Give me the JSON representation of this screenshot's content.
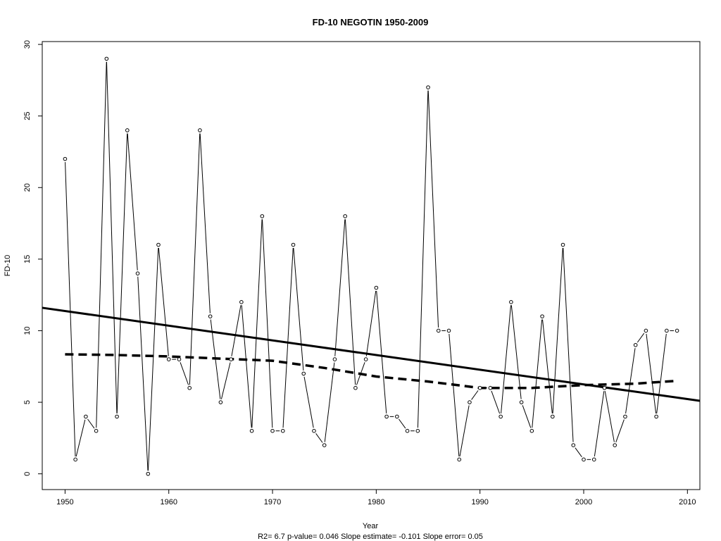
{
  "chart_data": {
    "type": "line",
    "title": "FD-10   NEGOTIN 1950-2009",
    "xlabel": "Year",
    "ylabel": "FD-10",
    "subtitle": "R2= 6.7  p-value= 0.046  Slope estimate= -0.101  Slope error= 0.05",
    "xlim": [
      1947.8,
      2011.2
    ],
    "ylim": [
      -1.1,
      30.2
    ],
    "xticks": [
      1950,
      1960,
      1970,
      1980,
      1990,
      2000,
      2010
    ],
    "yticks": [
      0,
      5,
      10,
      15,
      20,
      25,
      30
    ],
    "grid": false,
    "series": [
      {
        "style": "line-with-points",
        "x": [
          1950,
          1951,
          1952,
          1953,
          1954,
          1955,
          1956,
          1957,
          1958,
          1959,
          1960,
          1961,
          1962,
          1963,
          1964,
          1965,
          1966,
          1967,
          1968,
          1969,
          1970,
          1971,
          1972,
          1973,
          1974,
          1975,
          1976,
          1977,
          1978,
          1979,
          1980,
          1981,
          1982,
          1983,
          1984,
          1985,
          1986,
          1987,
          1988,
          1989,
          1990,
          1991,
          1992,
          1993,
          1994,
          1995,
          1996,
          1997,
          1998,
          1999,
          2000,
          2001,
          2002,
          2003,
          2004,
          2005,
          2006,
          2007,
          2008,
          2009
        ],
        "values": [
          22,
          1,
          4,
          3,
          29,
          4,
          24,
          14,
          0,
          16,
          8,
          8,
          6,
          24,
          11,
          5,
          8,
          12,
          3,
          18,
          3,
          3,
          16,
          7,
          3,
          2,
          8,
          18,
          6,
          8,
          13,
          4,
          4,
          3,
          3,
          27,
          10,
          10,
          1,
          5,
          6,
          6,
          4,
          12,
          5,
          3,
          11,
          4,
          16,
          2,
          1,
          1,
          6,
          2,
          4,
          9,
          10,
          4,
          10,
          10
        ]
      },
      {
        "style": "regression-line",
        "x": [
          1947.8,
          2011.2
        ],
        "values": [
          11.6,
          5.1
        ]
      },
      {
        "style": "dashed-smooth",
        "x": [
          1950,
          1955,
          1960,
          1965,
          1970,
          1975,
          1980,
          1985,
          1990,
          1995,
          2000,
          2005,
          2009
        ],
        "values": [
          8.35,
          8.3,
          8.2,
          8.05,
          7.9,
          7.4,
          6.8,
          6.45,
          6.0,
          6.0,
          6.2,
          6.3,
          6.5
        ]
      }
    ]
  }
}
